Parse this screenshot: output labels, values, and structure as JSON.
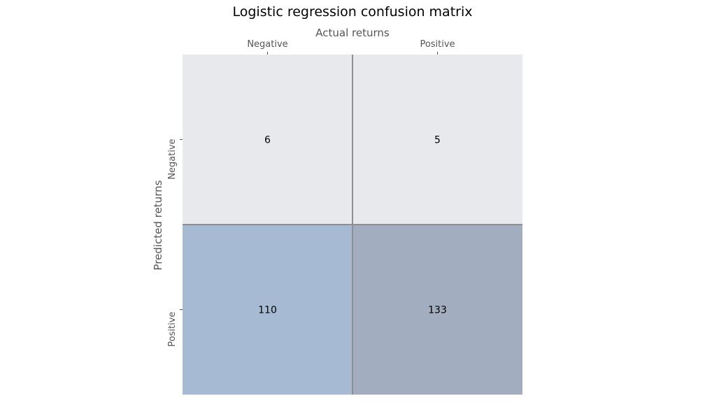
{
  "chart_data": {
    "type": "heatmap",
    "title": "Logistic regression confusion matrix",
    "xlabel": "Actual returns",
    "ylabel": "Predicted returns",
    "x_categories": [
      "Negative",
      "Positive"
    ],
    "y_categories": [
      "Negative",
      "Positive"
    ],
    "values": [
      [
        6,
        5
      ],
      [
        110,
        133
      ]
    ],
    "grid": true,
    "x_axis_position": "top",
    "colors": {
      "low": "#e8e9ec",
      "high": "#a3adc0",
      "cell_overrides": {
        "1,0": "#a6bbd3"
      },
      "grid_line": "#8f8f8f"
    }
  }
}
